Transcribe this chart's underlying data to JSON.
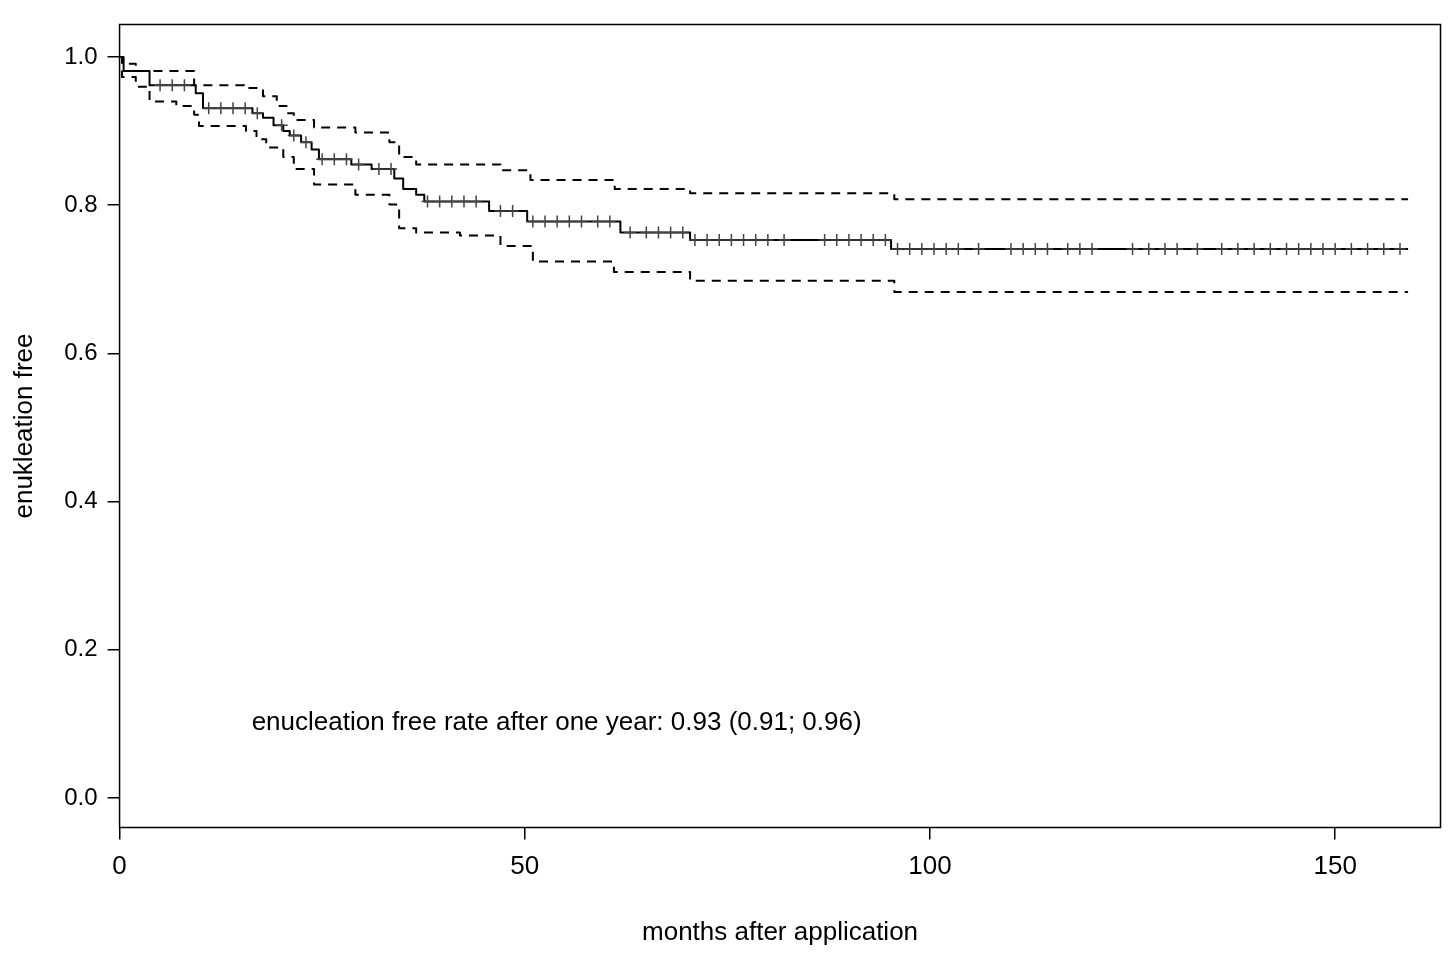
{
  "chart_data": {
    "type": "step",
    "xlabel": "months after application",
    "ylabel": "enukleation free",
    "xlim": [
      0,
      163
    ],
    "xticks": [
      0,
      50,
      100,
      150
    ],
    "ylim": [
      -0.04,
      1.044
    ],
    "yticks": [
      {
        "value": 0,
        "label": "0.0"
      },
      0.2,
      0.4,
      0.6,
      0.8,
      {
        "value": 1,
        "label": "1.0"
      }
    ],
    "grid": false,
    "legend": false,
    "annotations": [
      "enucleation free rate after one year: 0.93 (0.91; 0.96)"
    ],
    "series": [
      {
        "color": "#000000",
        "line_style": "solid",
        "x": [
          0,
          0.5,
          3.7,
          9.4,
          10.3,
          16.4,
          17.7,
          19,
          20.2,
          21,
          22.4,
          23.7,
          24.6,
          28.6,
          31.1,
          33.9,
          35,
          36.6,
          37.6,
          45.6,
          50.3,
          61.8,
          70.4,
          95.2,
          159
        ],
        "values": [
          1.0,
          0.981,
          0.962,
          0.951,
          0.931,
          0.924,
          0.918,
          0.908,
          0.9,
          0.894,
          0.885,
          0.875,
          0.862,
          0.855,
          0.849,
          0.836,
          0.822,
          0.814,
          0.805,
          0.792,
          0.778,
          0.763,
          0.753,
          0.741,
          0.741
        ]
      },
      {
        "color": "#000000",
        "line_style": "dashed",
        "x": [
          0,
          0.3,
          2,
          9.2,
          15.4,
          17.7,
          19.4,
          20.6,
          21.5,
          24,
          29.1,
          33.3,
          34.5,
          36.6,
          47,
          50.7,
          61.1,
          70.4,
          95.6,
          159
        ],
        "values": [
          1.0,
          0.991,
          0.981,
          0.962,
          0.958,
          0.947,
          0.934,
          0.924,
          0.915,
          0.905,
          0.898,
          0.885,
          0.865,
          0.855,
          0.847,
          0.834,
          0.822,
          0.816,
          0.808,
          0.808
        ]
      },
      {
        "color": "#000000",
        "line_style": "dashed",
        "x": [
          0,
          0.3,
          2,
          3.7,
          7,
          9.2,
          9.8,
          15.6,
          16.9,
          18.1,
          20.2,
          21.5,
          24,
          29.1,
          33.3,
          34.5,
          36.6,
          42,
          47,
          51,
          61,
          70.4,
          95.6,
          159
        ],
        "values": [
          1.0,
          0.973,
          0.96,
          0.94,
          0.934,
          0.922,
          0.907,
          0.9,
          0.889,
          0.878,
          0.865,
          0.849,
          0.828,
          0.814,
          0.801,
          0.769,
          0.763,
          0.759,
          0.745,
          0.724,
          0.71,
          0.698,
          0.683,
          0.683
        ]
      },
      {
        "type": "scatter",
        "color": "#444444",
        "marker": "cross",
        "x": [
          5,
          6.5,
          8,
          11,
          12.5,
          14,
          15.5,
          17,
          20,
          21.5,
          23,
          25,
          26.5,
          28,
          29.5,
          32,
          33.5,
          38,
          39.5,
          41,
          42.5,
          44,
          47,
          48.5,
          51,
          52.5,
          54,
          55.5,
          57,
          59,
          60.5,
          63,
          65,
          66.5,
          68,
          69.5,
          71,
          72.5,
          74,
          75.5,
          77,
          78.5,
          80,
          82,
          87,
          88.5,
          90,
          91.5,
          93,
          94.5,
          96,
          97.5,
          99,
          100.5,
          102,
          103.5,
          106,
          110,
          111.5,
          113,
          114.5,
          117,
          118.5,
          120,
          125,
          127,
          129,
          130.5,
          133,
          136,
          138,
          140,
          142,
          144,
          145.5,
          147,
          148.5,
          150,
          152,
          154,
          156,
          158
        ],
        "values": [
          0.962,
          0.962,
          0.962,
          0.931,
          0.931,
          0.931,
          0.931,
          0.924,
          0.908,
          0.894,
          0.885,
          0.862,
          0.862,
          0.862,
          0.855,
          0.849,
          0.849,
          0.805,
          0.805,
          0.805,
          0.805,
          0.805,
          0.792,
          0.792,
          0.778,
          0.778,
          0.778,
          0.778,
          0.778,
          0.778,
          0.778,
          0.763,
          0.763,
          0.763,
          0.763,
          0.763,
          0.753,
          0.753,
          0.753,
          0.753,
          0.753,
          0.753,
          0.753,
          0.753,
          0.753,
          0.753,
          0.753,
          0.753,
          0.753,
          0.753,
          0.741,
          0.741,
          0.741,
          0.741,
          0.741,
          0.741,
          0.741,
          0.741,
          0.741,
          0.741,
          0.741,
          0.741,
          0.741,
          0.741,
          0.741,
          0.741,
          0.741,
          0.741,
          0.741,
          0.741,
          0.741,
          0.741,
          0.741,
          0.741,
          0.741,
          0.741,
          0.741,
          0.741,
          0.741,
          0.741,
          0.741,
          0.741
        ]
      }
    ]
  }
}
